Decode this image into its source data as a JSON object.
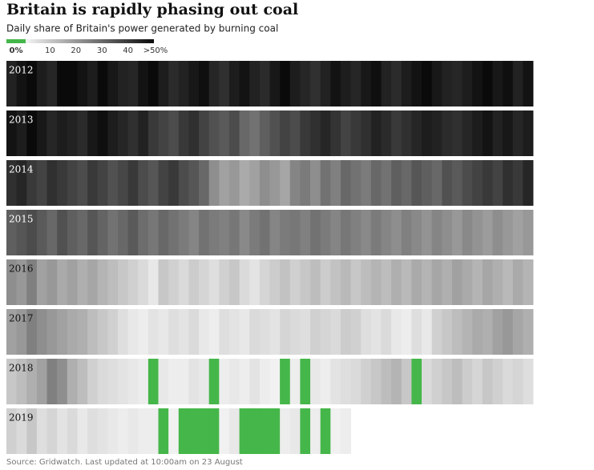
{
  "chart_data": {
    "type": "heatmap",
    "title": "Britain is rapidly phasing out coal",
    "subtitle": "Daily share of Britain's power generated by burning coal",
    "source": "Source: Gridwatch. Last updated at 10:00am on 23 August",
    "zero_color": "#45b649",
    "colorlim": [
      0,
      50
    ],
    "colorticks": [
      {
        "value": 0,
        "label": "0%"
      },
      10,
      20,
      30,
      40,
      {
        "value": 50,
        "label": ">50%"
      }
    ],
    "bins_per_year": 52,
    "series": [
      {
        "name": "2012",
        "values": [
          45,
          48,
          50,
          46,
          44,
          50,
          52,
          48,
          46,
          50,
          47,
          45,
          44,
          48,
          50,
          46,
          43,
          45,
          47,
          49,
          44,
          42,
          46,
          48,
          45,
          43,
          47,
          50,
          46,
          44,
          42,
          45,
          48,
          46,
          44,
          47,
          49,
          45,
          43,
          46,
          48,
          50,
          47,
          45,
          44,
          46,
          48,
          50,
          47,
          49,
          45,
          48
        ]
      },
      {
        "name": "2013",
        "values": [
          48,
          46,
          50,
          47,
          44,
          46,
          45,
          43,
          47,
          49,
          46,
          44,
          42,
          45,
          40,
          38,
          36,
          40,
          42,
          38,
          35,
          33,
          36,
          30,
          28,
          32,
          35,
          38,
          36,
          40,
          42,
          44,
          41,
          38,
          40,
          42,
          45,
          43,
          40,
          42,
          44,
          46,
          45,
          43,
          42,
          44,
          46,
          48,
          45,
          47,
          44,
          46
        ]
      },
      {
        "name": "2014",
        "values": [
          42,
          44,
          40,
          38,
          42,
          40,
          38,
          36,
          40,
          38,
          35,
          37,
          40,
          36,
          34,
          38,
          40,
          36,
          34,
          30,
          22,
          18,
          20,
          16,
          18,
          22,
          20,
          17,
          24,
          26,
          22,
          28,
          25,
          30,
          28,
          26,
          30,
          28,
          32,
          30,
          34,
          32,
          30,
          35,
          33,
          36,
          38,
          40,
          38,
          42,
          40,
          44
        ]
      },
      {
        "name": "2015",
        "values": [
          32,
          34,
          36,
          33,
          30,
          35,
          32,
          30,
          34,
          31,
          28,
          30,
          33,
          29,
          27,
          30,
          28,
          26,
          24,
          28,
          26,
          25,
          27,
          23,
          26,
          28,
          24,
          26,
          27,
          25,
          28,
          26,
          24,
          27,
          25,
          23,
          26,
          24,
          22,
          25,
          23,
          21,
          24,
          22,
          20,
          23,
          21,
          19,
          22,
          20,
          18,
          20
        ]
      },
      {
        "name": "2016",
        "values": [
          22,
          20,
          25,
          18,
          20,
          16,
          18,
          15,
          17,
          14,
          12,
          10,
          8,
          6,
          3,
          10,
          8,
          6,
          9,
          7,
          5,
          8,
          10,
          6,
          4,
          7,
          9,
          11,
          8,
          10,
          12,
          9,
          11,
          13,
          10,
          12,
          14,
          12,
          15,
          13,
          16,
          14,
          17,
          15,
          18,
          16,
          14,
          17,
          15,
          13,
          16,
          14
        ]
      },
      {
        "name": "2017",
        "values": [
          18,
          20,
          25,
          22,
          20,
          18,
          16,
          15,
          12,
          10,
          8,
          5,
          3,
          2,
          4,
          3,
          5,
          4,
          6,
          3,
          2,
          5,
          4,
          3,
          6,
          5,
          4,
          7,
          6,
          5,
          8,
          7,
          6,
          9,
          8,
          5,
          4,
          6,
          3,
          2,
          5,
          3,
          8,
          10,
          12,
          14,
          16,
          15,
          18,
          20,
          17,
          15
        ]
      },
      {
        "name": "2018",
        "values": [
          10,
          12,
          15,
          18,
          25,
          22,
          15,
          12,
          8,
          6,
          5,
          4,
          3,
          2,
          0,
          3,
          2,
          2,
          4,
          3,
          0,
          2,
          3,
          2,
          4,
          2,
          1,
          0,
          2,
          0,
          3,
          2,
          4,
          5,
          6,
          8,
          10,
          12,
          14,
          10,
          0,
          6,
          8,
          10,
          12,
          9,
          7,
          10,
          8,
          6,
          7,
          5
        ]
      },
      {
        "name": "2019",
        "values": [
          8,
          6,
          10,
          5,
          7,
          4,
          6,
          3,
          5,
          4,
          3,
          2,
          3,
          2,
          2,
          0,
          1,
          0,
          0,
          0,
          0,
          1,
          3,
          0,
          0,
          0,
          0,
          2,
          3,
          0,
          2,
          0,
          1,
          2
        ]
      }
    ]
  }
}
